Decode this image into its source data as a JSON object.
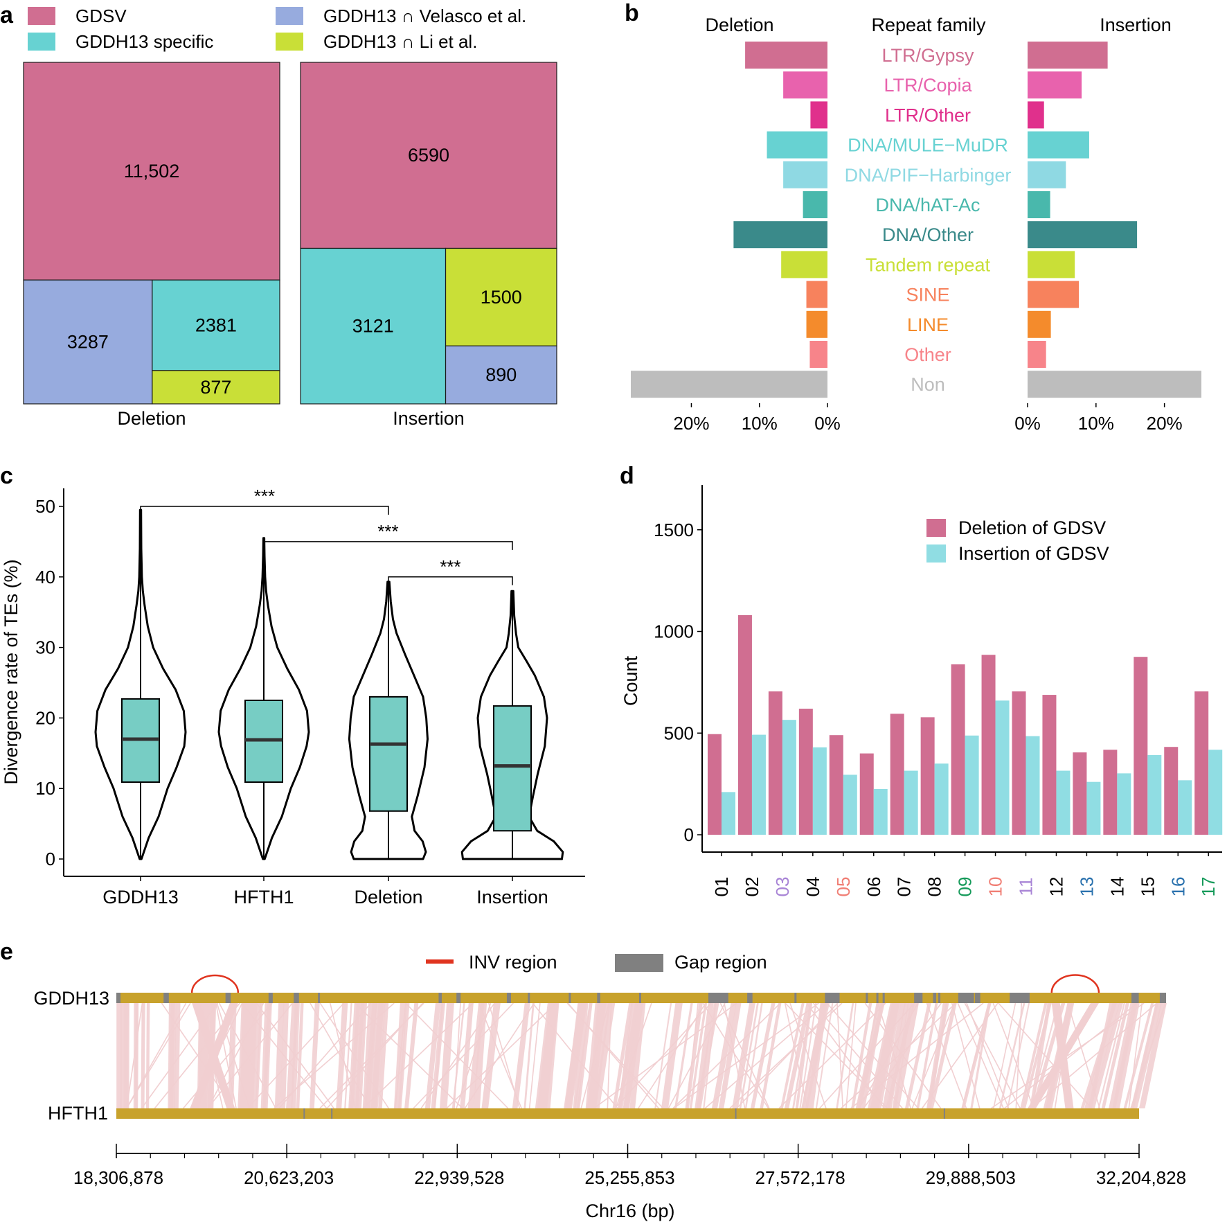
{
  "panel_labels": [
    "a",
    "b",
    "c",
    "d",
    "e"
  ],
  "colors": {
    "gdsv": "#d06e91",
    "specific": "#67d2d2",
    "velasco": "#97abde",
    "li": "#c9df37",
    "violin_box": "#77cdc4",
    "deletion_bar": "#d06e91",
    "insertion_bar": "#90dde3",
    "chrom": "#c8a22c",
    "gap": "#808080",
    "inv": "#e0341f",
    "link": "#f1cfd1"
  },
  "chart_data": [
    {
      "panel": "a",
      "type": "treemap",
      "legend": [
        "GDSV",
        "GDDH13 specific",
        "GDDH13 ∩ Velasco et al.",
        "GDDH13 ∩ Li et al."
      ],
      "groups": [
        {
          "name": "Deletion",
          "cells": [
            {
              "category": "GDSV",
              "label": "11,502",
              "value": 11502
            },
            {
              "category": "GDDH13 ∩ Velasco et al.",
              "label": "3287",
              "value": 3287
            },
            {
              "category": "GDDH13 specific",
              "label": "2381",
              "value": 2381
            },
            {
              "category": "GDDH13 ∩ Li et al.",
              "label": "877",
              "value": 877
            }
          ]
        },
        {
          "name": "Insertion",
          "cells": [
            {
              "category": "GDSV",
              "label": "6590",
              "value": 6590
            },
            {
              "category": "GDDH13 specific",
              "label": "3121",
              "value": 3121
            },
            {
              "category": "GDDH13 ∩ Li et al.",
              "label": "1500",
              "value": 1500
            },
            {
              "category": "GDDH13 ∩ Velasco et al.",
              "label": "890",
              "value": 890
            }
          ]
        }
      ]
    },
    {
      "panel": "b",
      "type": "bar",
      "orientation": "horizontal-mirrored",
      "left_title": "Deletion",
      "center_title": "Repeat family",
      "right_title": "Insertion",
      "categories": [
        "LTR/Gypsy",
        "LTR/Copia",
        "LTR/Other",
        "DNA/MULE−MuDR",
        "DNA/PIF−Harbinger",
        "DNA/hAT-Ac",
        "DNA/Other",
        "Tandem repeat",
        "SINE",
        "LINE",
        "Other",
        "Non"
      ],
      "category_colors": [
        "#d06e91",
        "#e862ad",
        "#e0308c",
        "#67d2d2",
        "#8fd9e3",
        "#49b8ac",
        "#3a8a8a",
        "#c9df37",
        "#f7825d",
        "#f48b2c",
        "#f7848a",
        "#bdbdbd"
      ],
      "deletion_pct": [
        12.1,
        6.5,
        2.5,
        8.9,
        6.5,
        3.6,
        13.8,
        6.8,
        3.1,
        3.1,
        2.6,
        28.9
      ],
      "insertion_pct": [
        11.7,
        7.9,
        2.4,
        9.0,
        5.6,
        3.3,
        16.0,
        6.9,
        7.5,
        3.4,
        2.7,
        25.4
      ],
      "left_ticks": [
        "20%",
        "10%",
        "0%"
      ],
      "right_ticks": [
        "0%",
        "10%",
        "20%"
      ],
      "left_tick_values": [
        20,
        10,
        0
      ],
      "right_tick_values": [
        0,
        10,
        20
      ]
    },
    {
      "panel": "c",
      "type": "violin",
      "ylabel": "Divergence rate of TEs (%)",
      "ylim": [
        0,
        52
      ],
      "yticks": [
        "0",
        "10",
        "20",
        "30",
        "40",
        "50"
      ],
      "ytick_values": [
        0,
        10,
        20,
        30,
        40,
        50
      ],
      "categories": [
        "GDDH13",
        "HFTH1",
        "Deletion",
        "Insertion"
      ],
      "boxes": [
        {
          "q1": 10.9,
          "median": 17.0,
          "q3": 22.7,
          "lower": 0,
          "upper": 49.5
        },
        {
          "q1": 10.9,
          "median": 16.9,
          "q3": 22.5,
          "lower": 0,
          "upper": 45.5
        },
        {
          "q1": 6.8,
          "median": 16.3,
          "q3": 23.0,
          "lower": 0,
          "upper": 39.3
        },
        {
          "q1": 4.0,
          "median": 13.2,
          "q3": 21.7,
          "lower": 0,
          "upper": 38.0
        }
      ],
      "violins": [
        {
          "w": [
            [
              0,
              0.02
            ],
            [
              3,
              0.18
            ],
            [
              6,
              0.4
            ],
            [
              10,
              0.6
            ],
            [
              13,
              0.8
            ],
            [
              16,
              0.97
            ],
            [
              18,
              1.0
            ],
            [
              21,
              0.96
            ],
            [
              24,
              0.78
            ],
            [
              27,
              0.5
            ],
            [
              30,
              0.28
            ],
            [
              33,
              0.16
            ],
            [
              36,
              0.09
            ],
            [
              38,
              0.05
            ],
            [
              40,
              0.03
            ],
            [
              44,
              0.015
            ],
            [
              49.5,
              0.01
            ]
          ]
        },
        {
          "w": [
            [
              0,
              0.02
            ],
            [
              3,
              0.18
            ],
            [
              6,
              0.4
            ],
            [
              10,
              0.6
            ],
            [
              13,
              0.8
            ],
            [
              16,
              0.95
            ],
            [
              18,
              1.0
            ],
            [
              21,
              0.96
            ],
            [
              24,
              0.78
            ],
            [
              27,
              0.52
            ],
            [
              30,
              0.3
            ],
            [
              33,
              0.17
            ],
            [
              36,
              0.09
            ],
            [
              38,
              0.05
            ],
            [
              40,
              0.03
            ],
            [
              43,
              0.015
            ],
            [
              45.5,
              0.01
            ]
          ]
        },
        {
          "w": [
            [
              0,
              0.77
            ],
            [
              1,
              0.83
            ],
            [
              2.5,
              0.76
            ],
            [
              4,
              0.58
            ],
            [
              6,
              0.52
            ],
            [
              9,
              0.65
            ],
            [
              13,
              0.8
            ],
            [
              17,
              0.87
            ],
            [
              20,
              0.84
            ],
            [
              23,
              0.77
            ],
            [
              26,
              0.57
            ],
            [
              29,
              0.37
            ],
            [
              32,
              0.18
            ],
            [
              34,
              0.1
            ],
            [
              36.5,
              0.05
            ],
            [
              39.3,
              0.02
            ]
          ]
        },
        {
          "w": [
            [
              0,
              1.1
            ],
            [
              1,
              1.12
            ],
            [
              2.5,
              0.92
            ],
            [
              4,
              0.55
            ],
            [
              6,
              0.37
            ],
            [
              9,
              0.46
            ],
            [
              12,
              0.56
            ],
            [
              16,
              0.72
            ],
            [
              20,
              0.77
            ],
            [
              23,
              0.7
            ],
            [
              26,
              0.5
            ],
            [
              28,
              0.32
            ],
            [
              30,
              0.13
            ],
            [
              32,
              0.08
            ],
            [
              34.5,
              0.04
            ],
            [
              38,
              0.02
            ]
          ]
        }
      ],
      "significance": [
        {
          "from": "GDDH13",
          "to": "Deletion",
          "label": "***",
          "y": 50,
          "drop_to": 49.5
        },
        {
          "from": "HFTH1",
          "to": "Insertion",
          "label": "***",
          "y": 45,
          "drop_to": 45
        },
        {
          "from": "Deletion",
          "to": "Insertion",
          "label": "***",
          "y": 40,
          "drop_to": 40
        }
      ]
    },
    {
      "panel": "d",
      "type": "bar",
      "ylabel": "Count",
      "ylim": [
        -35,
        1700
      ],
      "yticks": [
        "0",
        "500",
        "1000",
        "1500"
      ],
      "ytick_values": [
        0,
        500,
        1000,
        1500
      ],
      "categories": [
        "01",
        "02",
        "03",
        "04",
        "05",
        "06",
        "07",
        "08",
        "09",
        "10",
        "11",
        "12",
        "13",
        "14",
        "15",
        "16",
        "17"
      ],
      "category_colors": [
        "#000000",
        "#000000",
        "#a884d6",
        "#000000",
        "#f07e74",
        "#000000",
        "#000000",
        "#000000",
        "#159a5a",
        "#f07e74",
        "#a884d6",
        "#000000",
        "#2b72ae",
        "#000000",
        "#000000",
        "#2b72ae",
        "#159a5a"
      ],
      "series": [
        {
          "name": "Deletion of GDSV",
          "values": [
            495,
            1080,
            705,
            620,
            490,
            400,
            595,
            578,
            838,
            885,
            705,
            688,
            405,
            418,
            875,
            432,
            705
          ]
        },
        {
          "name": "Insertion of GDSV",
          "values": [
            210,
            492,
            565,
            430,
            295,
            225,
            315,
            350,
            488,
            660,
            485,
            315,
            260,
            302,
            392,
            268,
            418
          ]
        }
      ]
    },
    {
      "panel": "e",
      "type": "synteny",
      "legend": [
        "INV region",
        "Gap region"
      ],
      "tracks": [
        "GDDH13",
        "HFTH1"
      ],
      "xlabel": "Chr16 (bp)",
      "xlim": [
        18306878,
        32204828
      ],
      "ticks": [
        "18,306,878",
        "20,623,203",
        "22,939,528",
        "25,255,853",
        "27,572,178",
        "29,888,503",
        "32,204,828"
      ],
      "tick_values": [
        18306878,
        20623203,
        22939528,
        25255853,
        27572178,
        29888503,
        32204828
      ],
      "gddh13_gaps": [
        [
          0,
          0.004
        ],
        [
          0.045,
          0.05
        ],
        [
          0.104,
          0.109
        ],
        [
          0.145,
          0.149
        ],
        [
          0.169,
          0.174
        ],
        [
          0.192,
          0.194
        ],
        [
          0.307,
          0.31
        ],
        [
          0.324,
          0.328
        ],
        [
          0.372,
          0.376
        ],
        [
          0.392,
          0.394
        ],
        [
          0.431,
          0.433
        ],
        [
          0.458,
          0.461
        ],
        [
          0.498,
          0.5
        ],
        [
          0.564,
          0.583
        ],
        [
          0.601,
          0.606
        ],
        [
          0.646,
          0.648
        ],
        [
          0.675,
          0.689
        ],
        [
          0.714,
          0.716
        ],
        [
          0.724,
          0.725
        ],
        [
          0.73,
          0.732
        ],
        [
          0.76,
          0.768
        ],
        [
          0.778,
          0.781
        ],
        [
          0.783,
          0.785
        ],
        [
          0.802,
          0.817
        ],
        [
          0.818,
          0.823
        ],
        [
          0.851,
          0.87
        ],
        [
          0.967,
          0.974
        ],
        [
          0.994,
          1.0
        ]
      ],
      "hfth1_gaps": [
        0.183,
        0.21,
        0.605,
        0.809
      ],
      "inversions": [
        [
          0.072,
          0.116
        ],
        [
          0.891,
          0.936
        ]
      ]
    }
  ]
}
